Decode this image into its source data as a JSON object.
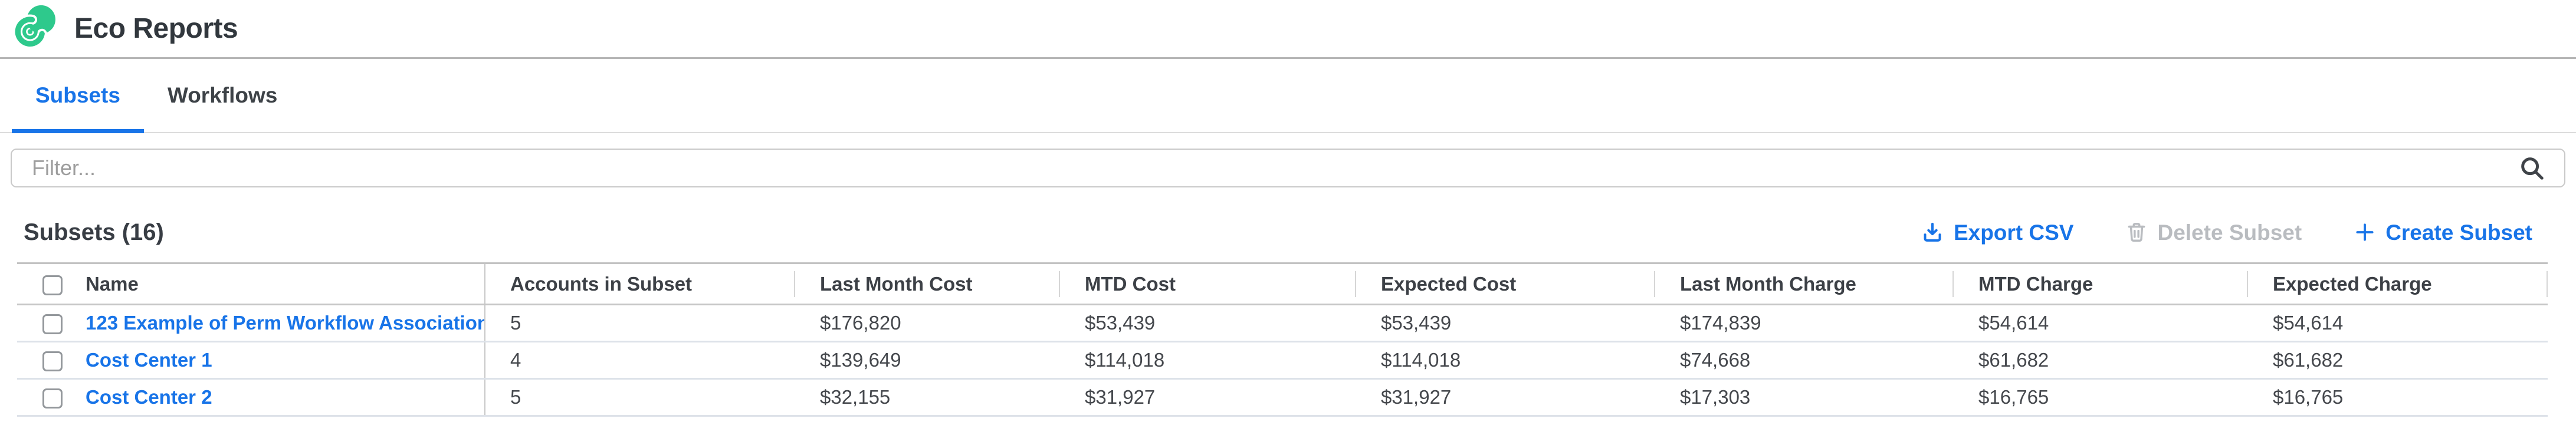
{
  "header": {
    "title": "Eco Reports"
  },
  "tabs": {
    "subsets": "Subsets",
    "workflows": "Workflows"
  },
  "filter": {
    "placeholder": "Filter..."
  },
  "toolbar": {
    "heading": "Subsets (16)",
    "export_csv": "Export CSV",
    "delete_subset": "Delete Subset",
    "create_subset": "Create Subset"
  },
  "table": {
    "columns": [
      "Name",
      "Accounts in Subset",
      "Last Month Cost",
      "MTD Cost",
      "Expected Cost",
      "Last Month Charge",
      "MTD Charge",
      "Expected Charge"
    ],
    "rows": [
      [
        "123 Example of Perm Workflow Association",
        "5",
        "$176,820",
        "$53,439",
        "$53,439",
        "$174,839",
        "$54,614",
        "$54,614"
      ],
      [
        "Cost Center 1",
        "4",
        "$139,649",
        "$114,018",
        "$114,018",
        "$74,668",
        "$61,682",
        "$61,682"
      ],
      [
        "Cost Center 2",
        "5",
        "$32,155",
        "$31,927",
        "$31,927",
        "$17,303",
        "$16,765",
        "$16,765"
      ]
    ]
  },
  "colors": {
    "accent_blue": "#1874e8",
    "logo_green": "#2ec98c",
    "disabled_gray": "#b9bcc0"
  }
}
